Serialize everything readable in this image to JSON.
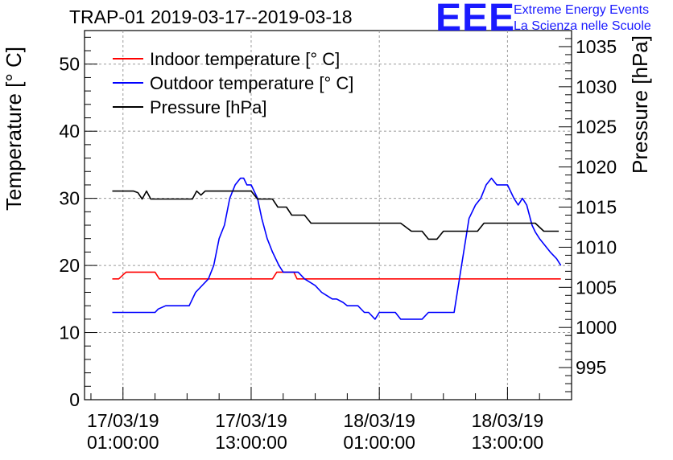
{
  "chart_data": {
    "type": "line",
    "title": "TRAP-01 2019-03-17--2019-03-18",
    "ylabel": "Temperature [° C]",
    "y2label": "Pressure [hPa]",
    "ylim": [
      0,
      55
    ],
    "y2lim": [
      991,
      1037
    ],
    "yticks": [
      "0",
      "10",
      "20",
      "30",
      "40",
      "50"
    ],
    "y2ticks": [
      "995",
      "1000",
      "1005",
      "1010",
      "1015",
      "1020",
      "1025",
      "1030",
      "1035"
    ],
    "xlim": [
      -3.6,
      42
    ],
    "xticks": [
      {
        "t": 0,
        "line1": "17/03/19",
        "line2": "01:00:00"
      },
      {
        "t": 12,
        "line1": "17/03/19",
        "line2": "13:00:00"
      },
      {
        "t": 24,
        "line1": "18/03/19",
        "line2": "01:00:00"
      },
      {
        "t": 36,
        "line1": "18/03/19",
        "line2": "13:00:00"
      }
    ],
    "grid": true,
    "legend": "top-left",
    "series": [
      {
        "name": "Indoor temperature [° C]",
        "axis": "left",
        "color": "#ff0000",
        "points": [
          [
            -1,
            18
          ],
          [
            -0.4,
            18
          ],
          [
            0,
            18.6
          ],
          [
            0.3,
            19
          ],
          [
            3,
            19
          ],
          [
            3.4,
            18
          ],
          [
            14,
            18
          ],
          [
            14.4,
            19
          ],
          [
            16,
            19
          ],
          [
            16.3,
            18
          ],
          [
            41,
            18
          ]
        ]
      },
      {
        "name": "Outdoor temperature [° C]",
        "axis": "left",
        "color": "#0000ff",
        "points": [
          [
            -1,
            13
          ],
          [
            3,
            13
          ],
          [
            3.3,
            13.5
          ],
          [
            4,
            14
          ],
          [
            6.2,
            14
          ],
          [
            6.8,
            16
          ],
          [
            8,
            18
          ],
          [
            8.5,
            20
          ],
          [
            9,
            24
          ],
          [
            9.5,
            26
          ],
          [
            10,
            30
          ],
          [
            10.5,
            32
          ],
          [
            11,
            33
          ],
          [
            11.3,
            33
          ],
          [
            11.6,
            32
          ],
          [
            12,
            32
          ],
          [
            12.6,
            30
          ],
          [
            13,
            27
          ],
          [
            13.5,
            24
          ],
          [
            14,
            22
          ],
          [
            14.6,
            20
          ],
          [
            15,
            19
          ],
          [
            16.4,
            19
          ],
          [
            17,
            18
          ],
          [
            18,
            17
          ],
          [
            18.6,
            16
          ],
          [
            19,
            15.6
          ],
          [
            19.6,
            15
          ],
          [
            20,
            15
          ],
          [
            20.6,
            14.5
          ],
          [
            21,
            14
          ],
          [
            22,
            14
          ],
          [
            22.6,
            13
          ],
          [
            23,
            13
          ],
          [
            23.6,
            12
          ],
          [
            24,
            13
          ],
          [
            25.5,
            13
          ],
          [
            26,
            12
          ],
          [
            28,
            12
          ],
          [
            28.6,
            13
          ],
          [
            31,
            13
          ],
          [
            31.5,
            18
          ],
          [
            32,
            23
          ],
          [
            32.4,
            27
          ],
          [
            33,
            29
          ],
          [
            33.5,
            30
          ],
          [
            34,
            32
          ],
          [
            34.5,
            33
          ],
          [
            35,
            32
          ],
          [
            36,
            32
          ],
          [
            36.6,
            30
          ],
          [
            37,
            29
          ],
          [
            37.4,
            30
          ],
          [
            37.8,
            29
          ],
          [
            38.3,
            26
          ],
          [
            38.6,
            25
          ],
          [
            39,
            24
          ],
          [
            40,
            22
          ],
          [
            40.6,
            21
          ],
          [
            41,
            20
          ]
        ]
      },
      {
        "name": "Pressure [hPa]",
        "axis": "right",
        "color": "#000000",
        "points": [
          [
            -1,
            1017
          ],
          [
            1,
            1017
          ],
          [
            1.4,
            1016.8
          ],
          [
            1.8,
            1016
          ],
          [
            2.2,
            1017
          ],
          [
            2.6,
            1016
          ],
          [
            3,
            1016
          ],
          [
            6.5,
            1016
          ],
          [
            6.9,
            1017
          ],
          [
            7.3,
            1016.5
          ],
          [
            7.7,
            1017
          ],
          [
            12,
            1017
          ],
          [
            12.6,
            1016
          ],
          [
            14,
            1016
          ],
          [
            14.5,
            1015
          ],
          [
            15.3,
            1015
          ],
          [
            15.8,
            1014
          ],
          [
            17,
            1014
          ],
          [
            17.6,
            1013
          ],
          [
            26,
            1013
          ],
          [
            27,
            1012
          ],
          [
            28,
            1012
          ],
          [
            28.6,
            1011
          ],
          [
            29.4,
            1011
          ],
          [
            30,
            1012
          ],
          [
            33.2,
            1012
          ],
          [
            33.8,
            1013
          ],
          [
            38.6,
            1013
          ],
          [
            39.4,
            1012
          ],
          [
            40.8,
            1012
          ]
        ]
      }
    ]
  }
}
